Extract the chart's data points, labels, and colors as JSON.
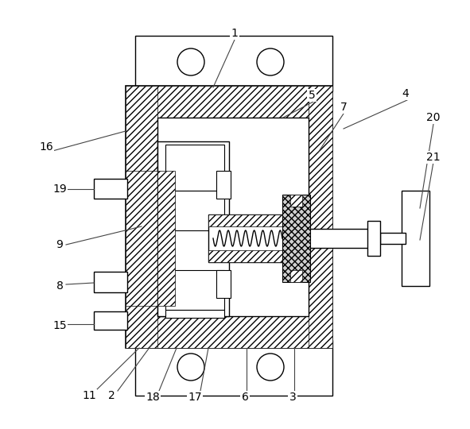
{
  "bg_color": "#ffffff",
  "fig_width": 5.91,
  "fig_height": 5.4,
  "dpi": 100,
  "labels": [
    [
      "1",
      295,
      42
    ],
    [
      "2",
      140,
      498
    ],
    [
      "3",
      368,
      500
    ],
    [
      "4",
      510,
      118
    ],
    [
      "5",
      392,
      120
    ],
    [
      "6",
      308,
      500
    ],
    [
      "7",
      432,
      135
    ],
    [
      "8",
      75,
      360
    ],
    [
      "9",
      75,
      308
    ],
    [
      "11",
      112,
      498
    ],
    [
      "15",
      75,
      410
    ],
    [
      "16",
      58,
      185
    ],
    [
      "17",
      245,
      500
    ],
    [
      "18",
      192,
      500
    ],
    [
      "19",
      75,
      238
    ],
    [
      "20",
      545,
      148
    ],
    [
      "21",
      545,
      198
    ]
  ],
  "leader_lines": [
    [
      295,
      50,
      268,
      110
    ],
    [
      148,
      492,
      192,
      432
    ],
    [
      370,
      492,
      370,
      438
    ],
    [
      512,
      126,
      432,
      162
    ],
    [
      394,
      128,
      356,
      148
    ],
    [
      310,
      492,
      310,
      438
    ],
    [
      432,
      143,
      400,
      192
    ],
    [
      83,
      358,
      118,
      356
    ],
    [
      83,
      308,
      178,
      285
    ],
    [
      120,
      492,
      175,
      438
    ],
    [
      83,
      408,
      118,
      408
    ],
    [
      66,
      190,
      158,
      165
    ],
    [
      252,
      492,
      262,
      438
    ],
    [
      200,
      492,
      222,
      438
    ],
    [
      83,
      238,
      118,
      238
    ],
    [
      545,
      156,
      528,
      262
    ],
    [
      545,
      204,
      528,
      302
    ]
  ]
}
